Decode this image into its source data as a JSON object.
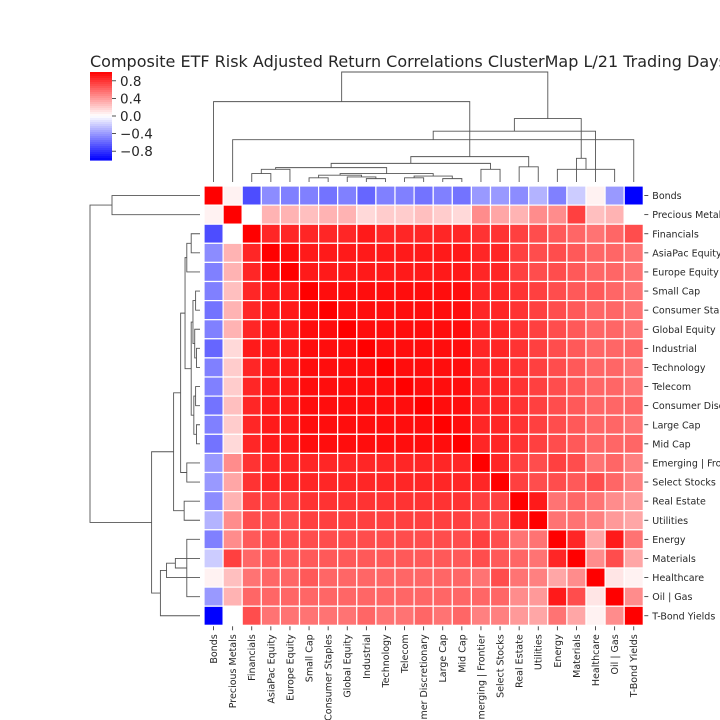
{
  "chart_data": {
    "type": "heatmap",
    "title": "Composite ETF Risk Adjusted Return Correlations ClusterMap L/21 Trading Days",
    "labels": [
      "Bonds",
      "Precious Metals",
      "Financials",
      "AsiaPac Equity",
      "Europe Equity",
      "Small Cap",
      "Consumer Staples",
      "Global Equity",
      "Industrial",
      "Technology",
      "Telecom",
      "Consumer Discretionary",
      "Large Cap",
      "Mid Cap",
      "Emerging | Frontier",
      "Select Stocks",
      "Real Estate",
      "Utilities",
      "Energy",
      "Materials",
      "Healthcare",
      "Oil | Gas",
      "T-Bond Yields"
    ],
    "colormap": {
      "name": "bwr",
      "vmin": -1,
      "vmax": 1,
      "low": "#0000ff",
      "mid": "#ffffff",
      "high": "#ff0000"
    },
    "colorbar_ticks": [
      0.8,
      0.4,
      0.0,
      -0.4,
      -0.8
    ],
    "colorbar_tick_labels": [
      "0.8",
      "0.4",
      "0.0",
      "−0.4",
      "−0.8"
    ],
    "values": [
      [
        1.0,
        0.05,
        -0.7,
        -0.45,
        -0.5,
        -0.5,
        -0.55,
        -0.5,
        -0.6,
        -0.5,
        -0.5,
        -0.55,
        -0.5,
        -0.55,
        -0.4,
        -0.4,
        -0.45,
        -0.3,
        -0.5,
        -0.2,
        0.05,
        -0.4,
        -1.0
      ],
      [
        0.05,
        1.0,
        0.0,
        0.3,
        0.3,
        0.25,
        0.3,
        0.3,
        0.15,
        0.2,
        0.2,
        0.25,
        0.2,
        0.15,
        0.45,
        0.35,
        0.3,
        0.45,
        0.45,
        0.75,
        0.25,
        0.3,
        0.0
      ],
      [
        -0.7,
        0.0,
        1.0,
        0.85,
        0.85,
        0.85,
        0.85,
        0.85,
        0.9,
        0.85,
        0.85,
        0.85,
        0.85,
        0.85,
        0.8,
        0.8,
        0.75,
        0.7,
        0.65,
        0.6,
        0.55,
        0.6,
        0.7
      ],
      [
        -0.45,
        0.3,
        0.85,
        1.0,
        0.95,
        0.9,
        0.9,
        0.9,
        0.9,
        0.9,
        0.9,
        0.9,
        0.9,
        0.9,
        0.85,
        0.85,
        0.75,
        0.7,
        0.7,
        0.65,
        0.6,
        0.6,
        0.55
      ],
      [
        -0.5,
        0.3,
        0.85,
        0.95,
        1.0,
        0.9,
        0.9,
        0.9,
        0.9,
        0.9,
        0.9,
        0.9,
        0.9,
        0.9,
        0.85,
        0.85,
        0.75,
        0.7,
        0.7,
        0.65,
        0.6,
        0.6,
        0.55
      ],
      [
        -0.5,
        0.25,
        0.85,
        0.9,
        0.9,
        1.0,
        0.95,
        0.95,
        0.95,
        0.95,
        0.95,
        0.95,
        0.95,
        0.95,
        0.85,
        0.85,
        0.8,
        0.75,
        0.7,
        0.65,
        0.65,
        0.6,
        0.55
      ],
      [
        -0.55,
        0.3,
        0.85,
        0.9,
        0.9,
        0.95,
        1.0,
        0.95,
        0.95,
        0.95,
        0.95,
        0.95,
        0.95,
        0.95,
        0.85,
        0.85,
        0.8,
        0.75,
        0.7,
        0.65,
        0.6,
        0.6,
        0.55
      ],
      [
        -0.5,
        0.3,
        0.85,
        0.9,
        0.9,
        0.95,
        0.95,
        1.0,
        0.95,
        0.95,
        0.95,
        0.95,
        0.95,
        0.95,
        0.85,
        0.85,
        0.8,
        0.75,
        0.7,
        0.65,
        0.6,
        0.6,
        0.55
      ],
      [
        -0.6,
        0.15,
        0.9,
        0.9,
        0.9,
        0.95,
        0.95,
        0.95,
        1.0,
        0.95,
        0.95,
        0.95,
        0.95,
        0.95,
        0.85,
        0.85,
        0.8,
        0.75,
        0.7,
        0.65,
        0.6,
        0.6,
        0.6
      ],
      [
        -0.5,
        0.2,
        0.85,
        0.9,
        0.9,
        0.95,
        0.95,
        0.95,
        0.95,
        1.0,
        0.95,
        0.95,
        0.95,
        0.95,
        0.85,
        0.85,
        0.8,
        0.75,
        0.7,
        0.65,
        0.6,
        0.6,
        0.55
      ],
      [
        -0.5,
        0.2,
        0.85,
        0.9,
        0.9,
        0.95,
        0.95,
        0.95,
        0.95,
        0.95,
        1.0,
        0.95,
        0.95,
        0.95,
        0.85,
        0.85,
        0.8,
        0.75,
        0.7,
        0.65,
        0.6,
        0.6,
        0.55
      ],
      [
        -0.55,
        0.25,
        0.85,
        0.9,
        0.9,
        0.95,
        0.95,
        0.95,
        0.95,
        0.95,
        0.95,
        1.0,
        0.95,
        0.95,
        0.85,
        0.85,
        0.8,
        0.75,
        0.7,
        0.65,
        0.6,
        0.6,
        0.6
      ],
      [
        -0.5,
        0.2,
        0.85,
        0.9,
        0.9,
        0.95,
        0.95,
        0.95,
        0.95,
        0.95,
        0.95,
        0.95,
        1.0,
        0.95,
        0.85,
        0.85,
        0.8,
        0.75,
        0.7,
        0.65,
        0.6,
        0.6,
        0.55
      ],
      [
        -0.55,
        0.15,
        0.85,
        0.9,
        0.9,
        0.95,
        0.95,
        0.95,
        0.95,
        0.95,
        0.95,
        0.95,
        0.95,
        1.0,
        0.85,
        0.85,
        0.8,
        0.75,
        0.7,
        0.65,
        0.6,
        0.6,
        0.6
      ],
      [
        -0.4,
        0.45,
        0.8,
        0.85,
        0.85,
        0.85,
        0.85,
        0.85,
        0.85,
        0.85,
        0.85,
        0.85,
        0.85,
        0.85,
        1.0,
        0.85,
        0.75,
        0.7,
        0.75,
        0.7,
        0.55,
        0.6,
        0.5
      ],
      [
        -0.4,
        0.35,
        0.8,
        0.85,
        0.85,
        0.85,
        0.85,
        0.85,
        0.85,
        0.85,
        0.85,
        0.85,
        0.85,
        0.85,
        0.85,
        1.0,
        0.75,
        0.7,
        0.7,
        0.65,
        0.7,
        0.6,
        0.5
      ],
      [
        -0.45,
        0.3,
        0.75,
        0.75,
        0.75,
        0.8,
        0.8,
        0.8,
        0.8,
        0.8,
        0.8,
        0.8,
        0.8,
        0.8,
        0.75,
        0.75,
        1.0,
        0.9,
        0.55,
        0.6,
        0.55,
        0.45,
        0.4
      ],
      [
        -0.3,
        0.45,
        0.7,
        0.7,
        0.7,
        0.75,
        0.75,
        0.75,
        0.75,
        0.75,
        0.75,
        0.75,
        0.75,
        0.75,
        0.7,
        0.7,
        0.9,
        1.0,
        0.55,
        0.55,
        0.5,
        0.4,
        0.35
      ],
      [
        -0.5,
        0.45,
        0.65,
        0.7,
        0.7,
        0.7,
        0.7,
        0.7,
        0.7,
        0.7,
        0.7,
        0.7,
        0.7,
        0.7,
        0.75,
        0.7,
        0.55,
        0.55,
        1.0,
        0.85,
        0.35,
        0.9,
        0.55
      ],
      [
        -0.2,
        0.75,
        0.6,
        0.65,
        0.65,
        0.65,
        0.65,
        0.65,
        0.65,
        0.65,
        0.65,
        0.65,
        0.65,
        0.65,
        0.7,
        0.65,
        0.6,
        0.55,
        0.85,
        1.0,
        0.45,
        0.7,
        0.35
      ],
      [
        0.05,
        0.25,
        0.55,
        0.6,
        0.6,
        0.65,
        0.6,
        0.6,
        0.6,
        0.6,
        0.6,
        0.6,
        0.6,
        0.6,
        0.55,
        0.7,
        0.55,
        0.5,
        0.35,
        0.45,
        1.0,
        0.1,
        0.05
      ],
      [
        -0.4,
        0.3,
        0.6,
        0.6,
        0.6,
        0.6,
        0.6,
        0.6,
        0.6,
        0.6,
        0.6,
        0.6,
        0.6,
        0.6,
        0.6,
        0.6,
        0.45,
        0.4,
        0.9,
        0.7,
        0.1,
        1.0,
        0.45
      ],
      [
        -1.0,
        0.0,
        0.7,
        0.55,
        0.55,
        0.55,
        0.55,
        0.55,
        0.6,
        0.55,
        0.55,
        0.6,
        0.55,
        0.6,
        0.5,
        0.5,
        0.4,
        0.35,
        0.55,
        0.35,
        0.05,
        0.45,
        1.0
      ]
    ],
    "grid": false
  }
}
